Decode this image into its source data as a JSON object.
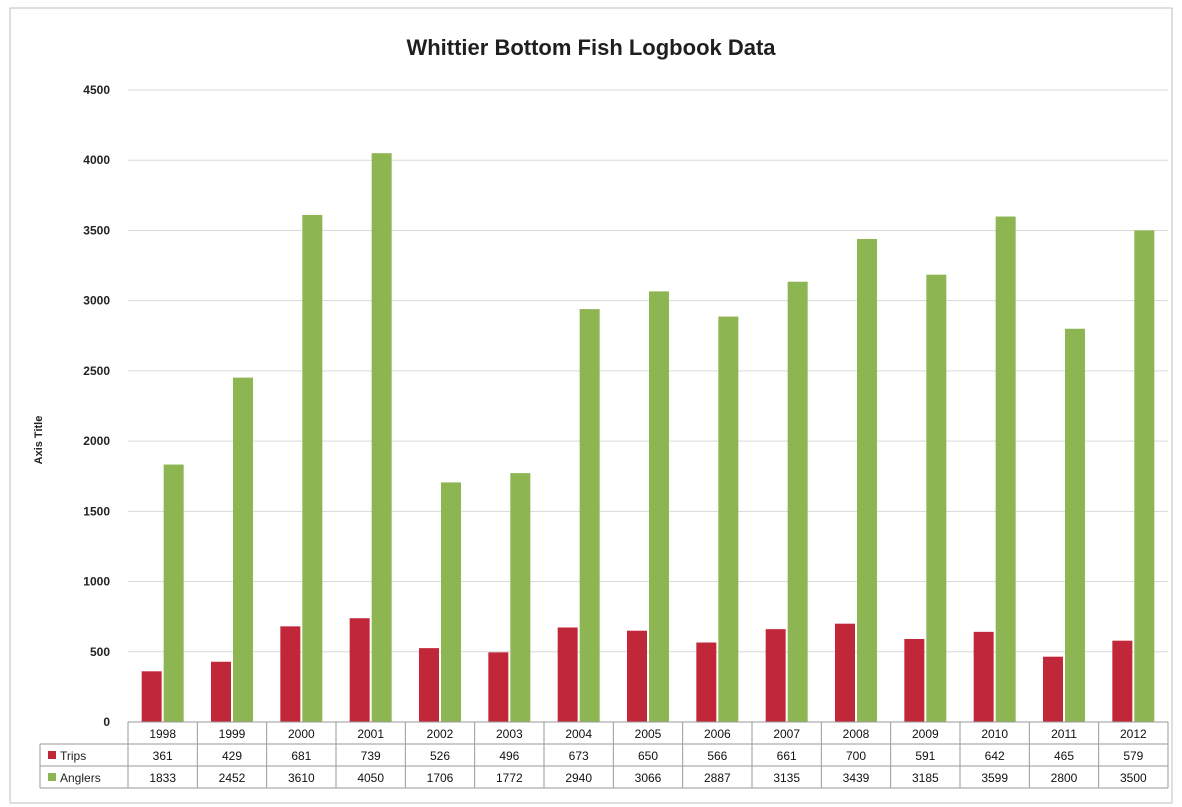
{
  "chart_data": {
    "type": "bar",
    "title": "Whittier Bottom Fish Logbook Data",
    "ylabel": "Axis Title",
    "xlabel": "",
    "ylim": [
      0,
      4500
    ],
    "yticks": [
      0,
      500,
      1000,
      1500,
      2000,
      2500,
      3000,
      3500,
      4000,
      4500
    ],
    "grid": true,
    "legend": "data-table-left",
    "categories": [
      "1998",
      "1999",
      "2000",
      "2001",
      "2002",
      "2003",
      "2004",
      "2005",
      "2006",
      "2007",
      "2008",
      "2009",
      "2010",
      "2011",
      "2012"
    ],
    "series": [
      {
        "name": "Trips",
        "color": "#c0283a",
        "values": [
          361,
          429,
          681,
          739,
          526,
          496,
          673,
          650,
          566,
          661,
          700,
          591,
          642,
          465,
          579
        ]
      },
      {
        "name": "Anglers",
        "color": "#8db552",
        "values": [
          1833,
          2452,
          3610,
          4050,
          1706,
          1772,
          2940,
          3066,
          2887,
          3135,
          3439,
          3185,
          3599,
          2800,
          3500
        ]
      }
    ]
  }
}
